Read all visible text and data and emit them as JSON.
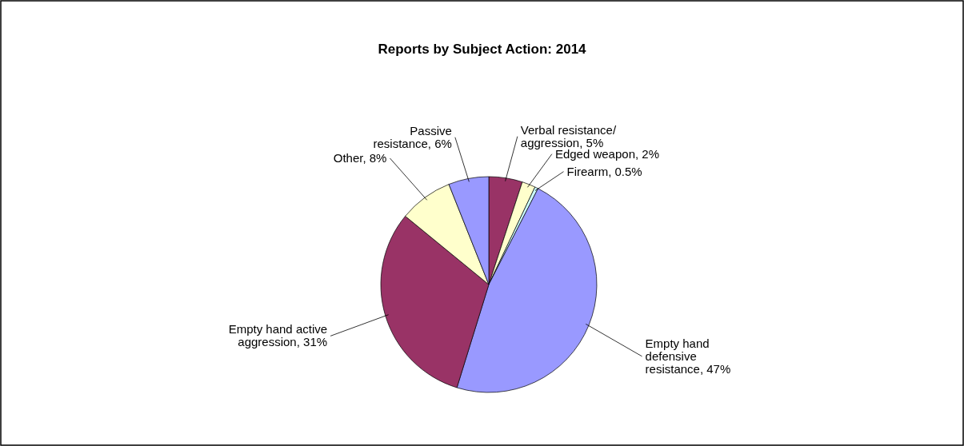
{
  "chart_data": {
    "type": "pie",
    "title": "Reports by Subject Action: 2014",
    "categories": [
      "Verbal resistance/ aggression",
      "Edged weapon",
      "Firearm",
      "Empty hand defensive resistance",
      "Empty hand active aggression",
      "Other",
      "Passive resistance"
    ],
    "values": [
      5,
      2,
      0.5,
      47,
      31,
      8,
      6
    ],
    "value_labels": [
      "5%",
      "2%",
      "0.5%",
      "47%",
      "31%",
      "8%",
      "6%"
    ],
    "colors": [
      "#993366",
      "#ffffcc",
      "#ccffff",
      "#9999ff",
      "#993366",
      "#ffffcc",
      "#9999ff"
    ]
  }
}
